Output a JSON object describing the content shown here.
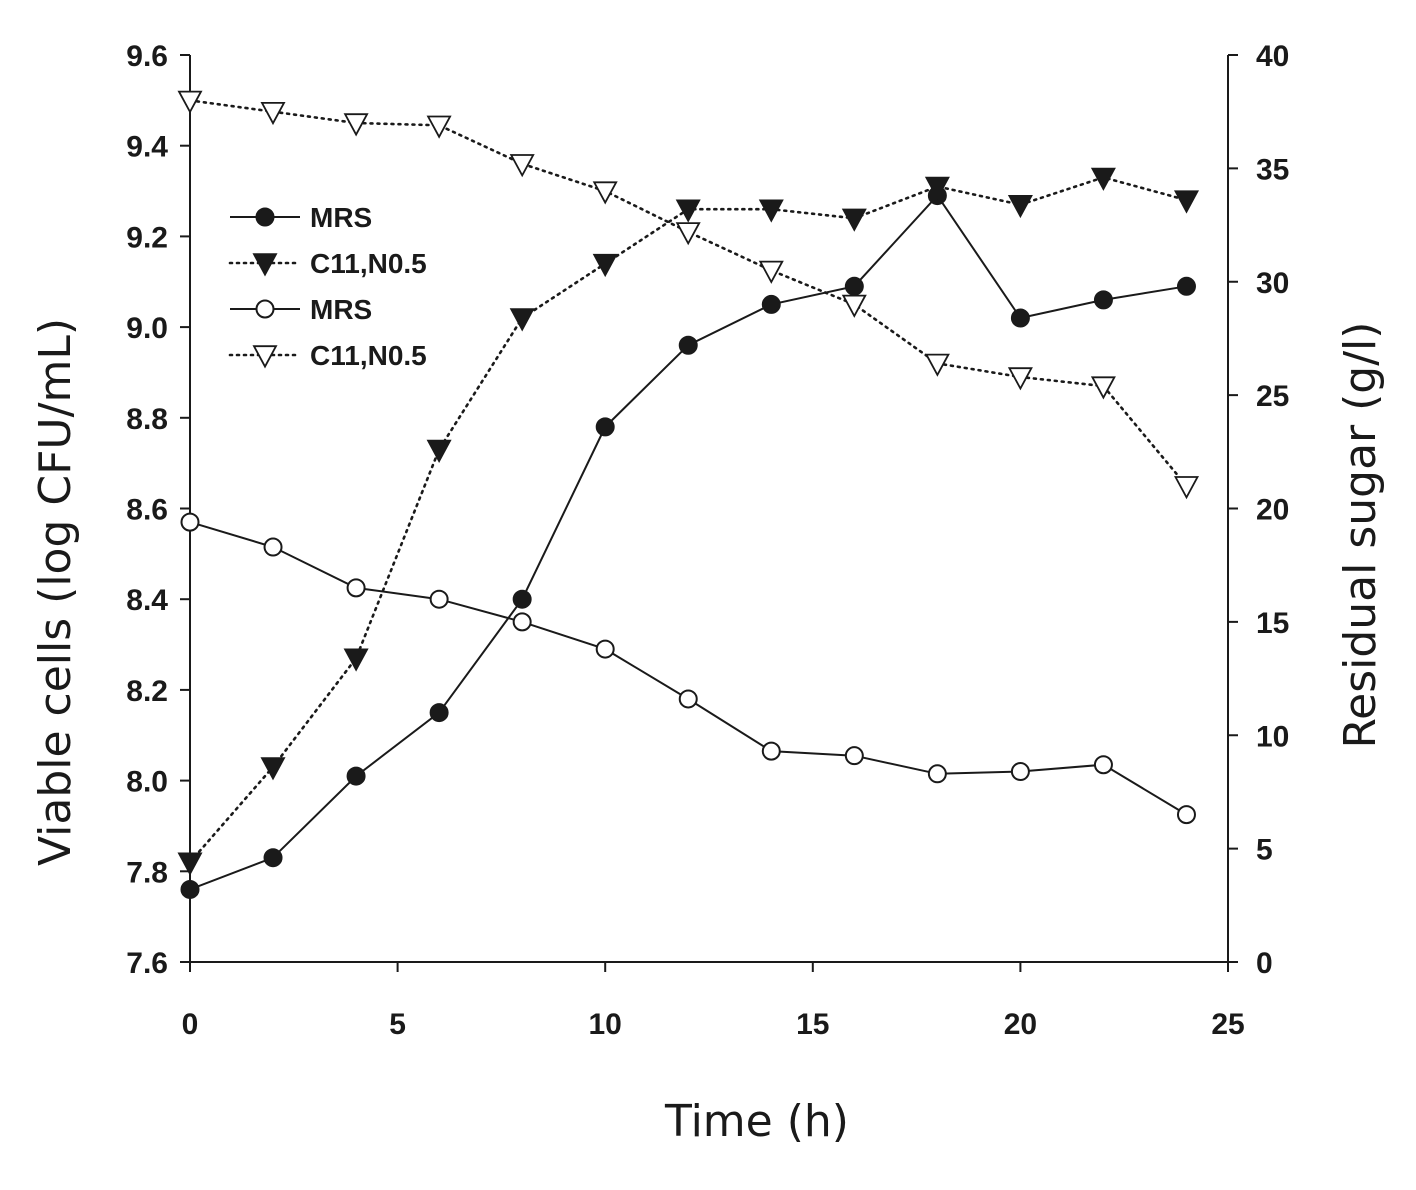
{
  "chart_data": {
    "type": "line",
    "title": "",
    "xlabel": "Time (h)",
    "ylabel_left": "Viable cells (log CFU/mL)",
    "ylabel_right": "Residual sugar (g/l)",
    "xlim": [
      0,
      25
    ],
    "ylim_left": [
      7.6,
      9.6
    ],
    "ylim_right": [
      0,
      40
    ],
    "x_ticks": [
      "0",
      "5",
      "10",
      "15",
      "20",
      "25"
    ],
    "y_left_ticks": [
      "7.6",
      "7.8",
      "8.0",
      "8.2",
      "8.4",
      "8.6",
      "8.8",
      "9.0",
      "9.2",
      "9.4",
      "9.6"
    ],
    "y_right_ticks": [
      "0",
      "5",
      "10",
      "15",
      "20",
      "25",
      "30",
      "35",
      "40"
    ],
    "legend_position": "upper-left",
    "x": [
      0,
      2,
      4,
      6,
      8,
      10,
      12,
      14,
      16,
      18,
      20,
      22,
      24
    ],
    "series": [
      {
        "name": "MRS",
        "axis": "left",
        "line": "solid",
        "marker": "circle-filled",
        "values": [
          7.76,
          7.83,
          8.01,
          8.15,
          8.4,
          8.78,
          8.96,
          9.05,
          9.09,
          9.29,
          9.02,
          9.06,
          9.09
        ]
      },
      {
        "name": "C11,N0.5",
        "axis": "left",
        "line": "dotted",
        "marker": "triangle-down-filled",
        "values": [
          7.82,
          8.03,
          8.27,
          8.73,
          9.02,
          9.14,
          9.26,
          9.26,
          9.24,
          9.31,
          9.27,
          9.33,
          9.28
        ]
      },
      {
        "name": "MRS",
        "axis": "right",
        "line": "solid",
        "marker": "circle-open",
        "values": [
          19.4,
          18.3,
          16.5,
          16.0,
          15.0,
          13.8,
          11.6,
          9.3,
          9.1,
          8.3,
          8.4,
          8.7,
          6.5
        ]
      },
      {
        "name": "C11,N0.5",
        "axis": "right",
        "line": "dotted",
        "marker": "triangle-down-open",
        "values": [
          38.0,
          37.5,
          37.0,
          36.9,
          35.2,
          34.0,
          32.2,
          30.5,
          29.0,
          26.4,
          25.8,
          25.4,
          21.0
        ]
      }
    ],
    "legend": [
      {
        "label": "MRS",
        "line": "solid",
        "marker": "circle-filled"
      },
      {
        "label": "C11,N0.5",
        "line": "dotted",
        "marker": "triangle-down-filled"
      },
      {
        "label": "MRS",
        "line": "solid",
        "marker": "circle-open"
      },
      {
        "label": "C11,N0.5",
        "line": "dotted",
        "marker": "triangle-down-open"
      }
    ],
    "colors": {
      "ink": "#1a1a1a",
      "background": "#ffffff"
    }
  }
}
